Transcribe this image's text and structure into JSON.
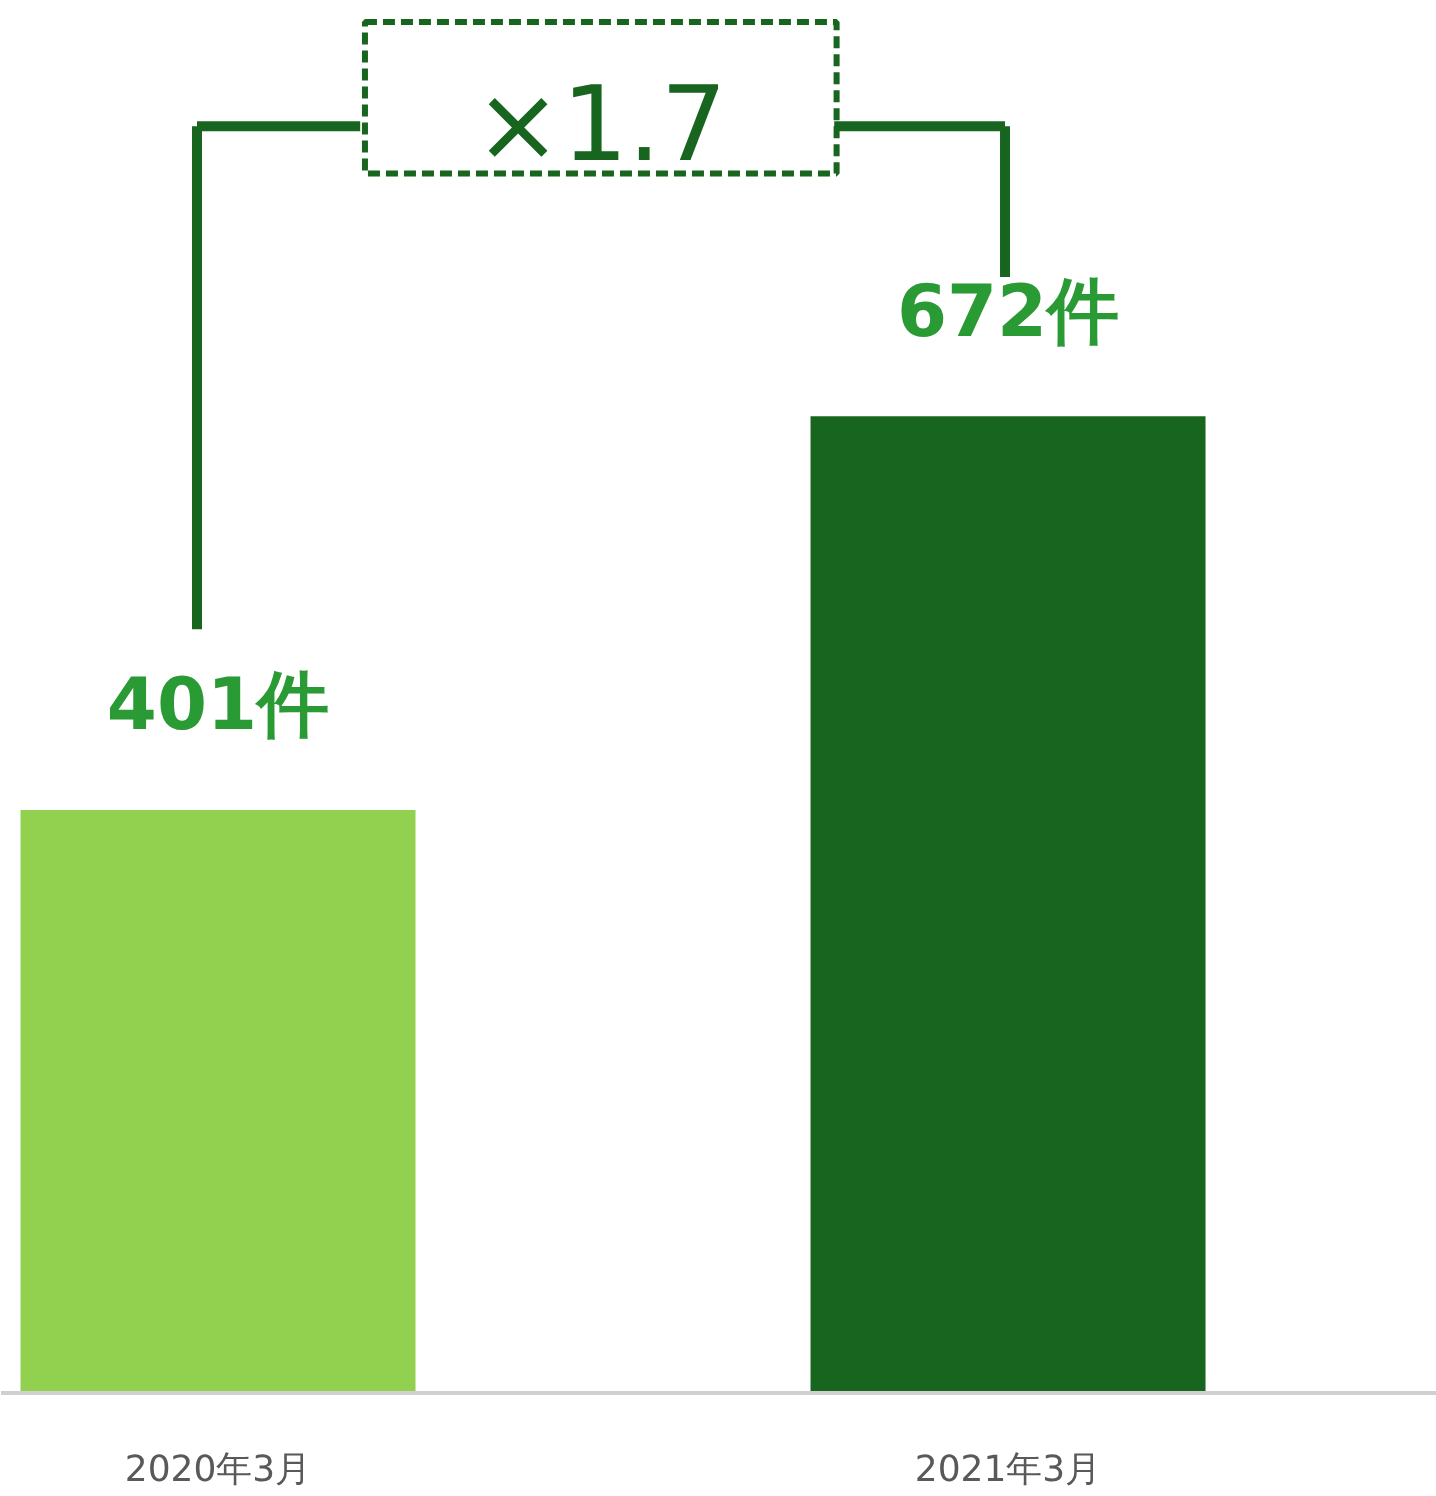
{
  "chart_data": {
    "type": "bar",
    "categories": [
      "2020年3月",
      "2021年3月"
    ],
    "values": [
      401,
      672
    ],
    "colors": [
      "#92d050",
      "#17651e"
    ],
    "value_labels": [
      "401件",
      "672件"
    ],
    "annotations": [
      "×1.7"
    ],
    "grid": false,
    "tick_labels": "x"
  }
}
